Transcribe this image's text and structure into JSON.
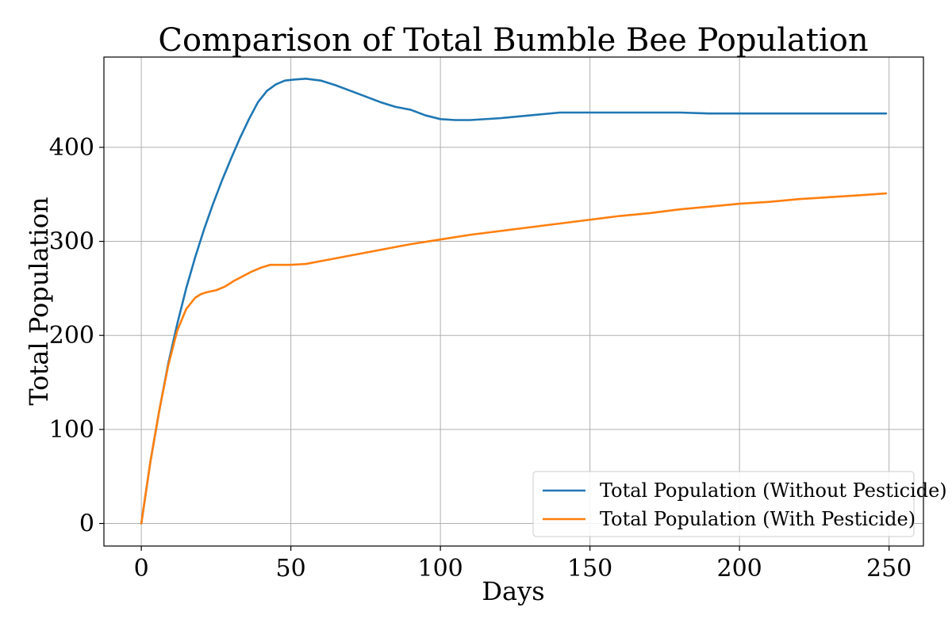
{
  "chart_data": {
    "type": "line",
    "title": "Comparison of Total Bumble Bee Population",
    "xlabel": "Days",
    "ylabel": "Total Population",
    "xlim": [
      -12.5,
      261.5
    ],
    "ylim": [
      -24,
      496
    ],
    "xticks": [
      0,
      50,
      100,
      150,
      200,
      250
    ],
    "yticks": [
      0,
      100,
      200,
      300,
      400
    ],
    "grid": true,
    "legend_position": "lower-right",
    "series": [
      {
        "name": "Total Population (Without Pesticide)",
        "color": "#1f77b4",
        "x": [
          0,
          3,
          6,
          9,
          12,
          15,
          18,
          21,
          24,
          27,
          30,
          33,
          36,
          39,
          42,
          45,
          48,
          51,
          55,
          60,
          65,
          70,
          75,
          80,
          85,
          90,
          95,
          100,
          105,
          110,
          120,
          130,
          140,
          150,
          160,
          170,
          180,
          190,
          200,
          210,
          220,
          230,
          240,
          249
        ],
        "y": [
          0,
          65,
          120,
          170,
          212,
          250,
          283,
          313,
          340,
          365,
          388,
          410,
          430,
          448,
          460,
          467,
          471,
          472,
          473,
          471,
          466,
          460,
          454,
          448,
          443,
          440,
          434,
          430,
          429,
          429,
          431,
          434,
          437,
          437,
          437,
          437,
          437,
          436,
          436,
          436,
          436,
          436,
          436,
          436
        ]
      },
      {
        "name": "Total Population (With Pesticide)",
        "color": "#ff7f0e",
        "x": [
          0,
          3,
          6,
          9,
          12,
          15,
          18,
          20,
          22,
          25,
          28,
          31,
          34,
          37,
          40,
          43,
          46,
          50,
          55,
          60,
          70,
          80,
          90,
          100,
          110,
          120,
          130,
          140,
          150,
          160,
          170,
          180,
          190,
          200,
          210,
          220,
          230,
          240,
          249
        ],
        "y": [
          0,
          65,
          120,
          168,
          205,
          228,
          240,
          244,
          246,
          248,
          252,
          258,
          263,
          268,
          272,
          275,
          275,
          275,
          276,
          279,
          285,
          291,
          297,
          302,
          307,
          311,
          315,
          319,
          323,
          327,
          330,
          334,
          337,
          340,
          342,
          345,
          347,
          349,
          351
        ]
      }
    ]
  }
}
